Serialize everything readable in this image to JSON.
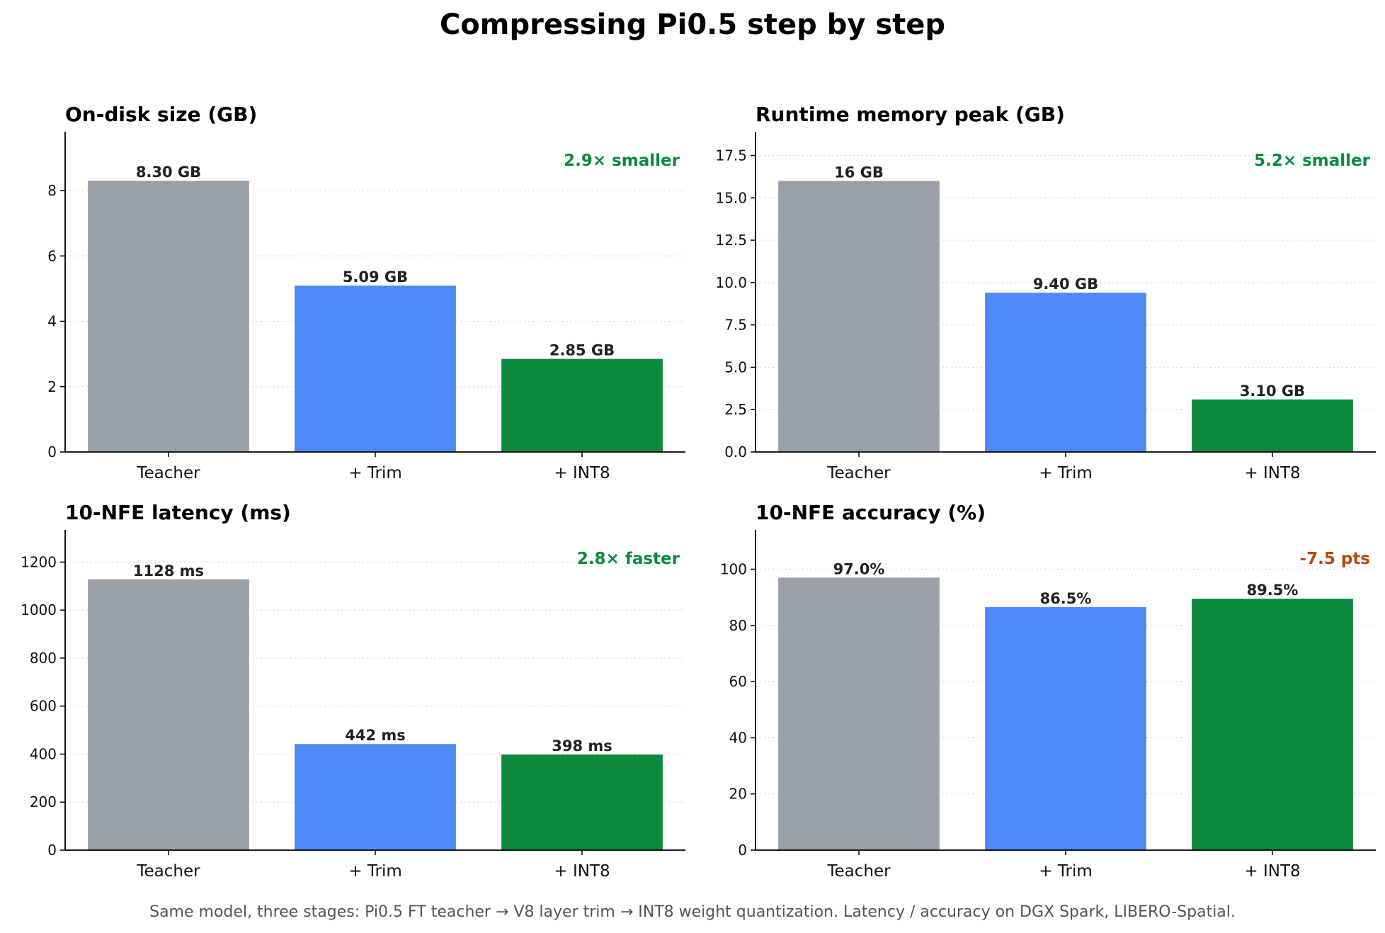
{
  "title": "Compressing Pi0.5 step by step",
  "footnote": "Same model, three stages: Pi0.5 FT teacher → V8 layer trim → INT8 weight quantization.  Latency / accuracy on DGX Spark, LIBERO-Spatial.",
  "colors": {
    "teacher": "#9aa0a8",
    "trim": "#4d8af5",
    "int8": "#0b8a3e",
    "annot_good": "#0b8a3e",
    "annot_bad": "#b8470c"
  },
  "chart_data": [
    {
      "type": "bar",
      "title": "On-disk size (GB)",
      "categories": [
        "Teacher",
        "+ Trim",
        "+ INT8"
      ],
      "values": [
        8.3,
        5.09,
        2.85
      ],
      "value_labels": [
        "8.30 GB",
        "5.09 GB",
        "2.85 GB"
      ],
      "yticks": [
        0,
        2,
        4,
        6,
        8
      ],
      "ytick_labels": [
        "0",
        "2",
        "4",
        "6",
        "8"
      ],
      "ylim": [
        0,
        9.8
      ],
      "annotation": "2.9× smaller",
      "annotation_color": "#0b8a3e",
      "grid": true
    },
    {
      "type": "bar",
      "title": "Runtime memory peak (GB)",
      "categories": [
        "Teacher",
        "+ Trim",
        "+ INT8"
      ],
      "values": [
        16.0,
        9.4,
        3.1
      ],
      "value_labels": [
        "16 GB",
        "9.40 GB",
        "3.10 GB"
      ],
      "yticks": [
        0,
        2.5,
        5,
        7.5,
        10,
        12.5,
        15,
        17.5
      ],
      "ytick_labels": [
        "0.0",
        "2.5",
        "5.0",
        "7.5",
        "10.0",
        "12.5",
        "15.0",
        "17.5"
      ],
      "ylim": [
        0,
        18.9
      ],
      "annotation": "5.2× smaller",
      "annotation_color": "#0b8a3e",
      "grid": true
    },
    {
      "type": "bar",
      "title": "10-NFE latency (ms)",
      "categories": [
        "Teacher",
        "+ Trim",
        "+ INT8"
      ],
      "values": [
        1128,
        442,
        398
      ],
      "value_labels": [
        "1128 ms",
        "442 ms",
        "398 ms"
      ],
      "yticks": [
        0,
        200,
        400,
        600,
        800,
        1000,
        1200
      ],
      "ytick_labels": [
        "0",
        "200",
        "400",
        "600",
        "800",
        "1000",
        "1200"
      ],
      "ylim": [
        0,
        1334
      ],
      "annotation": "2.8× faster",
      "annotation_color": "#0b8a3e",
      "grid": true
    },
    {
      "type": "bar",
      "title": "10-NFE accuracy (%)",
      "categories": [
        "Teacher",
        "+ Trim",
        "+ INT8"
      ],
      "values": [
        97.0,
        86.5,
        89.5
      ],
      "value_labels": [
        "97.0%",
        "86.5%",
        "89.5%"
      ],
      "yticks": [
        0,
        20,
        40,
        60,
        80,
        100
      ],
      "ytick_labels": [
        "0",
        "20",
        "40",
        "60",
        "80",
        "100"
      ],
      "ylim": [
        0,
        114
      ],
      "annotation": "-7.5 pts",
      "annotation_color": "#b8470c",
      "grid": true
    }
  ]
}
